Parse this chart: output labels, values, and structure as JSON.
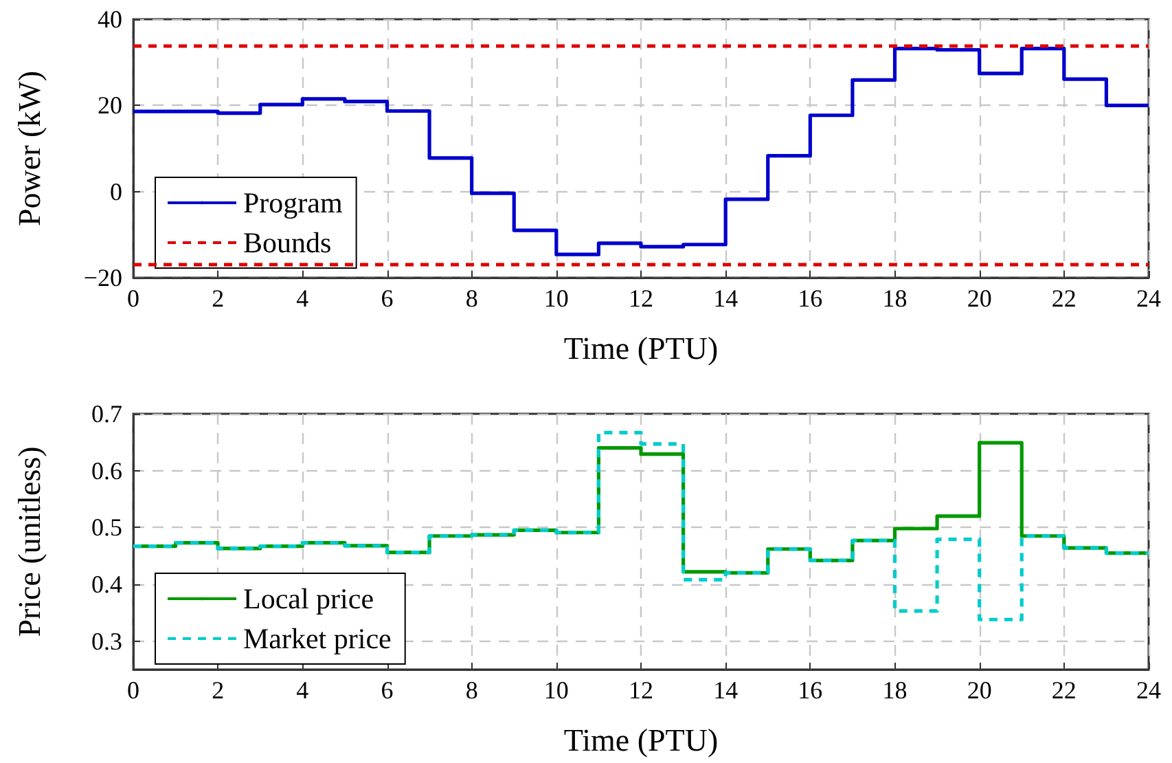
{
  "chart_data": [
    {
      "type": "step",
      "xlabel": "Time (PTU)",
      "ylabel": "Power (kW)",
      "xlim": [
        0,
        24
      ],
      "xticks": [
        0,
        2,
        4,
        6,
        8,
        10,
        12,
        14,
        16,
        18,
        20,
        22,
        24
      ],
      "ylim": [
        -20,
        40
      ],
      "yticks": [
        {
          "value": -20,
          "label": "−20"
        },
        0,
        20,
        40
      ],
      "grid": true,
      "legend": "bottom left",
      "marker": "none",
      "x": [
        0,
        1,
        2,
        3,
        4,
        5,
        6,
        7,
        8,
        9,
        10,
        11,
        12,
        13,
        14,
        15,
        16,
        17,
        18,
        19,
        20,
        21,
        22,
        23,
        24
      ],
      "series": [
        {
          "name": "Program",
          "color": "#0000cc",
          "line_style": "solid",
          "values": [
            18.6,
            18.6,
            18.2,
            20.2,
            21.5,
            20.9,
            18.7,
            7.8,
            -0.4,
            -9,
            -14.6,
            -12,
            -12.8,
            -12.3,
            -1.8,
            8.3,
            17.7,
            25.9,
            33.2,
            32.9,
            27.4,
            33.2,
            26.1,
            20,
            20
          ]
        }
      ],
      "ref_lines": [
        {
          "axis": "y",
          "value": 34,
          "label": "Bounds",
          "color": "#dd0000",
          "line_style": "dashed"
        },
        {
          "axis": "y",
          "value": -17,
          "color": "#dd0000",
          "line_style": "dashed"
        }
      ]
    },
    {
      "type": "step",
      "xlabel": "Time (PTU)",
      "ylabel": "Price (unitless)",
      "xlim": [
        0,
        24
      ],
      "xticks": [
        0,
        2,
        4,
        6,
        8,
        10,
        12,
        14,
        16,
        18,
        20,
        22,
        24
      ],
      "ylim": [
        0.25,
        0.7
      ],
      "yticks": [
        0.3,
        0.4,
        0.5,
        0.6,
        0.7
      ],
      "grid": true,
      "legend": "bottom left",
      "marker": "none",
      "x": [
        0,
        1,
        2,
        3,
        4,
        5,
        6,
        7,
        8,
        9,
        10,
        11,
        12,
        13,
        14,
        15,
        16,
        17,
        18,
        19,
        20,
        21,
        22,
        23,
        24
      ],
      "series": [
        {
          "name": "Local price",
          "color": "#009900",
          "line_style": "solid",
          "values": [
            0.467,
            0.473,
            0.463,
            0.467,
            0.473,
            0.468,
            0.456,
            0.485,
            0.487,
            0.495,
            0.491,
            0.64,
            0.629,
            0.422,
            0.42,
            0.462,
            0.442,
            0.477,
            0.498,
            0.52,
            0.649,
            0.485,
            0.464,
            0.455,
            0.455
          ]
        },
        {
          "name": "Market price",
          "color": "#00cccc",
          "line_style": "dashed",
          "values": [
            0.467,
            0.473,
            0.463,
            0.467,
            0.473,
            0.468,
            0.456,
            0.485,
            0.487,
            0.495,
            0.491,
            0.667,
            0.647,
            0.408,
            0.42,
            0.462,
            0.442,
            0.477,
            0.353,
            0.479,
            0.338,
            0.485,
            0.464,
            0.455,
            0.455
          ]
        }
      ]
    }
  ]
}
